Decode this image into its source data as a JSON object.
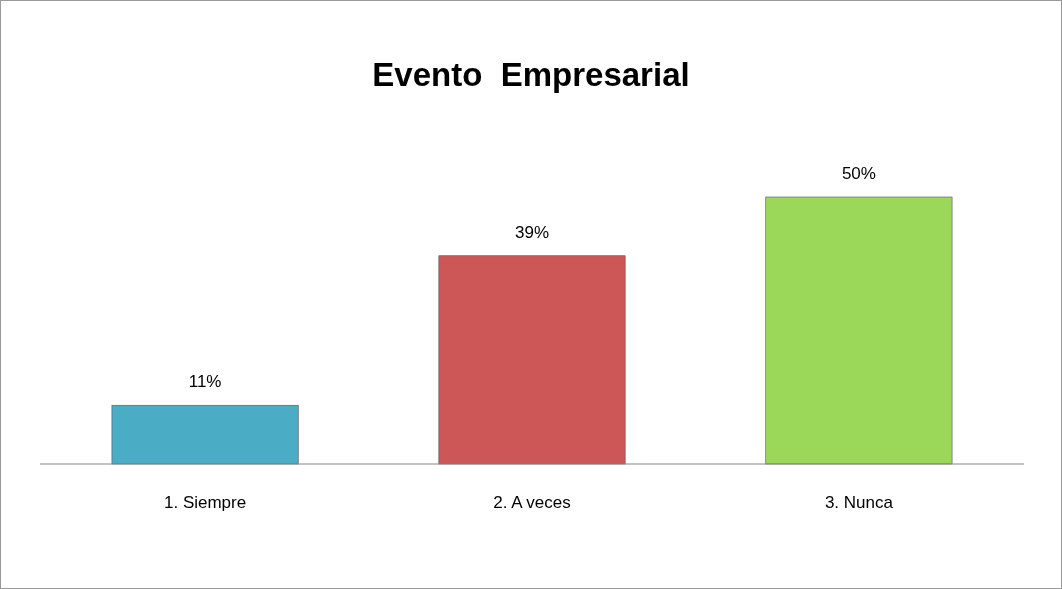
{
  "chart_data": {
    "type": "bar",
    "title": "Evento  Empresarial",
    "categories": [
      "1. Siempre",
      "2. A veces",
      "3. Nunca"
    ],
    "values": [
      11,
      39,
      50
    ],
    "colors": [
      "#4bacc6",
      "#cd5756",
      "#9bd85a"
    ],
    "value_labels": [
      "11%",
      "39%",
      "50%"
    ]
  }
}
